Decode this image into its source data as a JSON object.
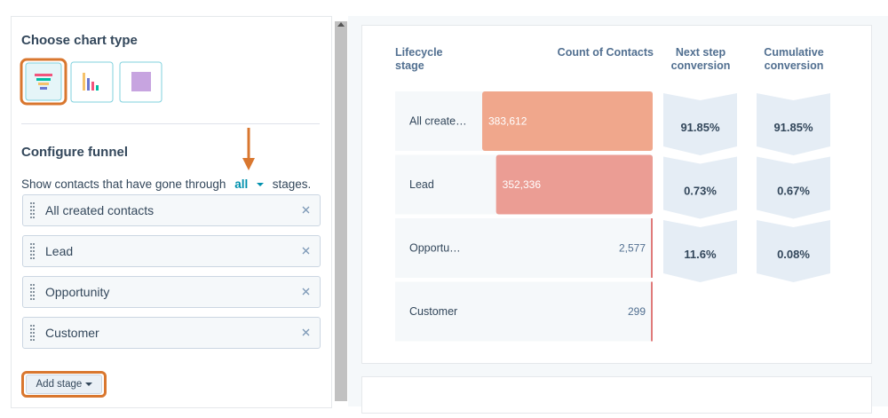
{
  "sidebar": {
    "chart_type_title": "Choose chart type",
    "configure_title": "Configure funnel",
    "show_prefix": "Show contacts that have gone through",
    "show_option": "all",
    "show_suffix": "stages.",
    "stages": [
      "All created contacts",
      "Lead",
      "Opportunity",
      "Customer"
    ],
    "add_stage": "Add stage"
  },
  "funnel": {
    "headers": [
      "Lifecycle stage",
      "Count of Contacts",
      "Next step conversion",
      "Cumulative conversion"
    ],
    "stages": [
      "All create…",
      "Lead",
      "Opportu…",
      "Customer"
    ],
    "values": [
      383612,
      352336,
      2577,
      299
    ],
    "value_labels": [
      "383,612",
      "352,336",
      "2,577",
      "299"
    ],
    "next_step": [
      "91.85%",
      "0.73%",
      "11.6%"
    ],
    "cumulative": [
      "91.85%",
      "0.67%",
      "0.08%"
    ]
  }
}
